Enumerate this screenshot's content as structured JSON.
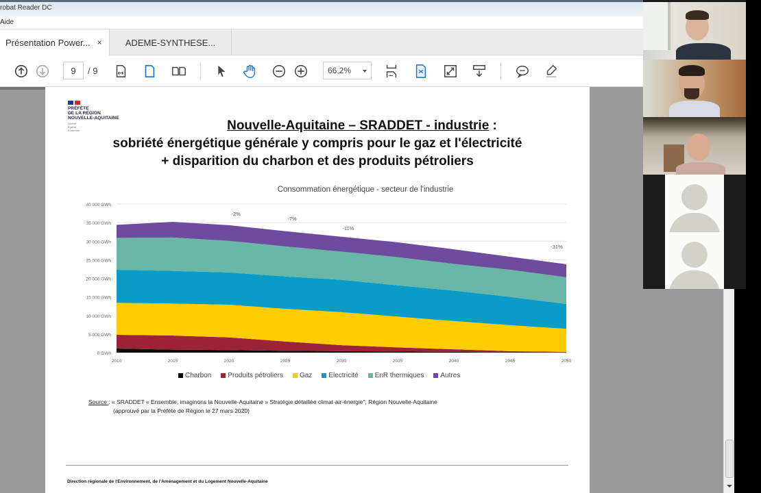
{
  "window": {
    "title": "robat Reader DC",
    "menu": [
      "Aide"
    ]
  },
  "tabs": [
    {
      "label": "Présentation Power...",
      "active": true,
      "close": "×"
    },
    {
      "label": "ADEME-SYNTHESE...",
      "active": false
    }
  ],
  "toolbar": {
    "current_page": "9",
    "total_pages": "/ 9",
    "zoom": "66,2%",
    "icons": [
      "prev-page-icon",
      "next-page-icon",
      "fit-width-icon",
      "single-page-icon",
      "two-page-icon",
      "select-cursor-icon",
      "hand-tool-icon",
      "zoom-out-icon",
      "zoom-in-icon",
      "scroll-mode-icon",
      "rotate-page-icon",
      "fullscreen-icon",
      "read-mode-icon",
      "comment-icon",
      "highlight-icon"
    ]
  },
  "slide": {
    "logo": {
      "lines": [
        "PRÉFÈTE",
        "DE LA RÉGION",
        "NOUVELLE-AQUITAINE"
      ],
      "motto": [
        "Liberté",
        "Égalité",
        "Fraternité"
      ]
    },
    "title_line1": "Nouvelle-Aquitaine – SRADDET - industrie",
    "title_line1_suffix": " :",
    "title_line2": "sobriété énergétique générale y compris pour le gaz et l'électricité",
    "title_line3": "+ disparition du charbon et des produits pétroliers",
    "source_label": "Source ",
    "source_text": ": « SRADDET « Ensemble, imaginons la Nouvelle-Aquitaine » Stratégie détaillée climat-air-énergie\", Région Nouvelle-Aquitaine",
    "source_line2": "(approuvé par la Préfète de  Région le 27 mars 2020)",
    "footer": "Direction régionale de l'Environnement, de l'Aménagement et du Logement Nouvelle-Aquitaine"
  },
  "chart_data": {
    "type": "area",
    "stacked": true,
    "title": "Consommation énergétique  - secteur de l'industrie",
    "xlabel": "",
    "ylabel": "",
    "x": [
      2010,
      2015,
      2020,
      2025,
      2030,
      2035,
      2040,
      2045,
      2050
    ],
    "yticks": [
      "0 GWh",
      "5 000 GWh",
      "10 000 GWh",
      "15 000 GWh",
      "20 000 GWh",
      "25 000 GWh",
      "30 000 GWh",
      "35 000 GWh",
      "40 000 GWh"
    ],
    "ylim": [
      0,
      40000
    ],
    "grid": true,
    "legend_position": "bottom",
    "series": [
      {
        "name": "Charbon",
        "color": "#0d0d0d",
        "values": [
          1100,
          800,
          700,
          500,
          400,
          300,
          200,
          100,
          50
        ]
      },
      {
        "name": "Produits pétroliers",
        "color": "#9b2335",
        "values": [
          3700,
          3800,
          3400,
          2500,
          1600,
          1100,
          700,
          300,
          150
        ]
      },
      {
        "name": "Gaz",
        "color": "#ffcc00",
        "values": [
          8600,
          8600,
          8800,
          8800,
          8900,
          8300,
          7600,
          7000,
          6200
        ]
      },
      {
        "name": "Electricité",
        "color": "#0a9bc6",
        "values": [
          8900,
          8800,
          8700,
          8700,
          8700,
          8400,
          8200,
          7600,
          6700
        ]
      },
      {
        "name": "EnR thermiques",
        "color": "#6ab7a8",
        "values": [
          8600,
          9000,
          8500,
          8100,
          7600,
          7600,
          7200,
          7300,
          7200
        ]
      },
      {
        "name": "Autres",
        "color": "#6d4c9f",
        "values": [
          3500,
          4200,
          4200,
          4100,
          4000,
          4000,
          3900,
          3500,
          3500
        ]
      }
    ],
    "annotations": [
      {
        "x": 2020,
        "text": "-2%"
      },
      {
        "x": 2025,
        "text": "-7%"
      },
      {
        "x": 2030,
        "text": "-11%"
      },
      {
        "x": 2050,
        "text": "-31%"
      }
    ]
  },
  "video": {
    "participants": [
      "participant-1",
      "participant-2",
      "participant-3",
      "participant-4",
      "participant-5"
    ]
  }
}
